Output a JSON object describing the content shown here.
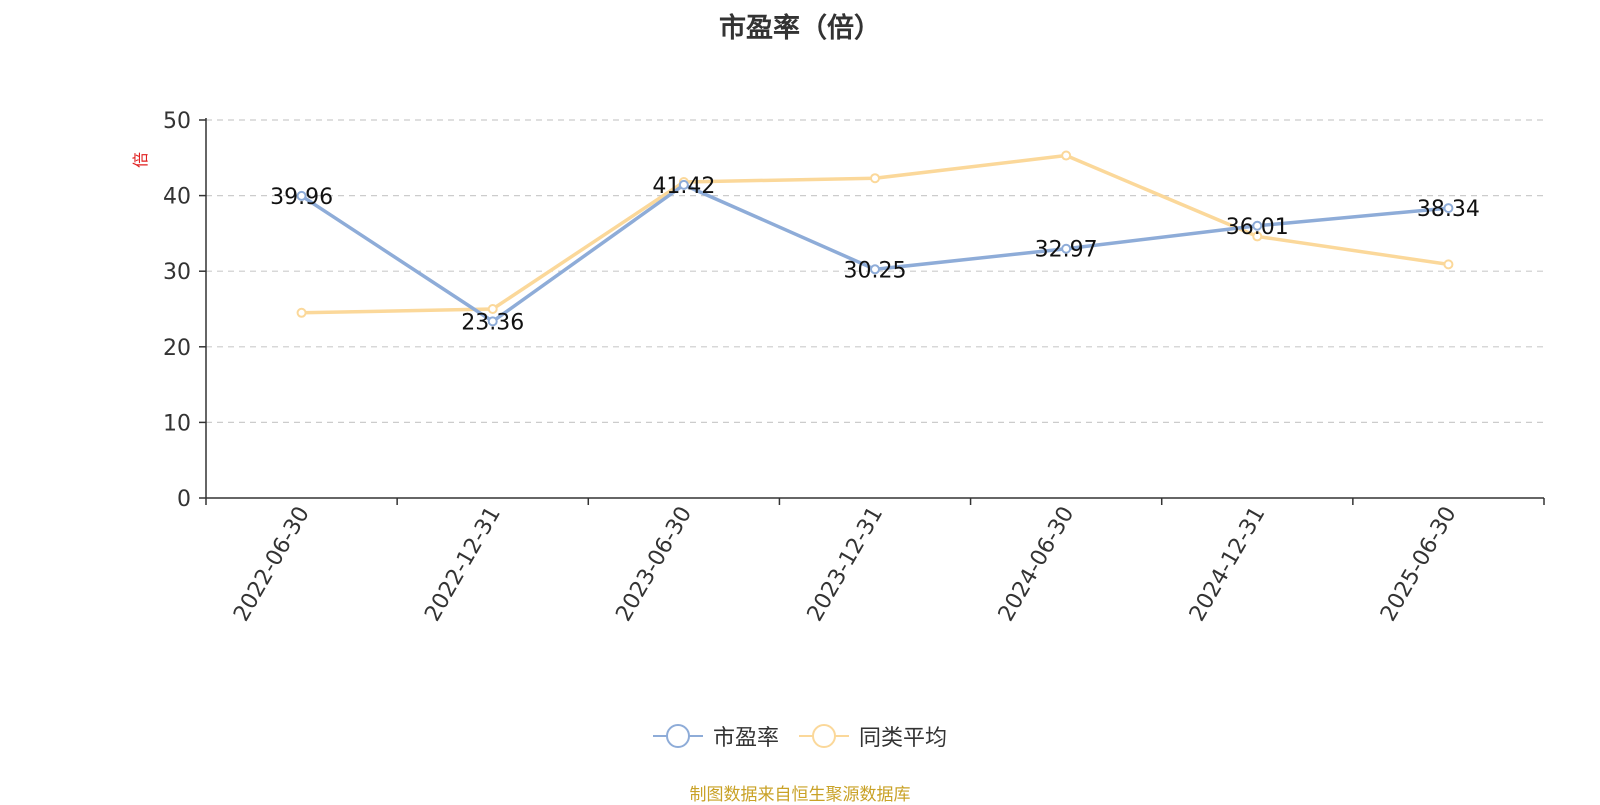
{
  "chart_data": {
    "type": "line",
    "title": "市盈率（倍）",
    "ylabel": "倍",
    "xlabel": "",
    "categories": [
      "2022-06-30",
      "2022-12-31",
      "2023-06-30",
      "2023-12-31",
      "2024-06-30",
      "2024-12-31",
      "2025-06-30"
    ],
    "ylim": [
      0,
      50
    ],
    "yticks": [
      0,
      10,
      20,
      30,
      40,
      50
    ],
    "grid": true,
    "legend_position": "bottom",
    "series": [
      {
        "name": "市盈率",
        "color": "#8eacd8",
        "values": [
          39.96,
          23.36,
          41.42,
          30.25,
          32.97,
          36.01,
          38.34
        ],
        "labels": [
          "39.96",
          "23.36",
          "41.42",
          "30.25",
          "32.97",
          "36.01",
          "38.34"
        ]
      },
      {
        "name": "同类平均",
        "color": "#fbd89a",
        "values": [
          24.5,
          25.0,
          41.8,
          42.3,
          45.3,
          34.6,
          30.9
        ]
      }
    ]
  },
  "source_note": "制图数据来自恒生聚源数据库"
}
